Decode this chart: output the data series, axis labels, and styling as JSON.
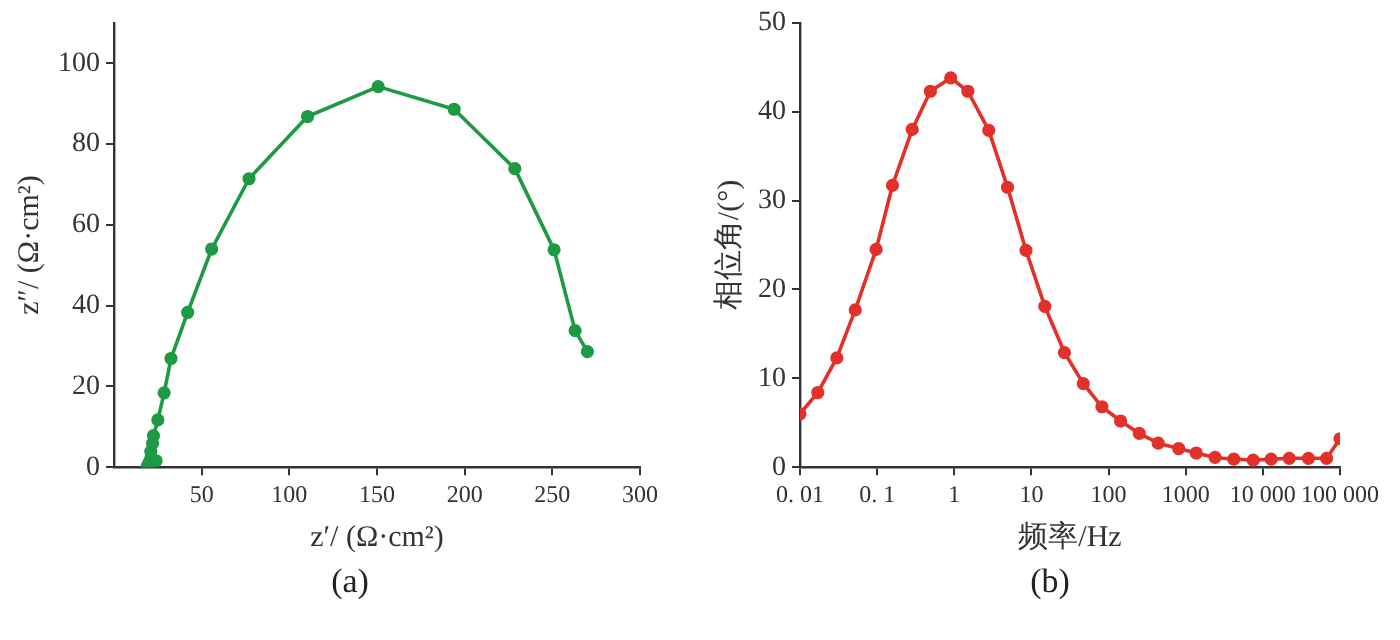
{
  "chart_data": [
    {
      "type": "line",
      "xlabel": "z′/ (Ω·cm²)",
      "ylabel": "z″/ (Ω·cm²)",
      "annotations": [
        "(a)"
      ],
      "marker": "circle",
      "line_style": "solid",
      "xlim": [
        0,
        300
      ],
      "xticks": [
        50,
        100,
        150,
        200,
        250,
        300
      ],
      "ylim": [
        0,
        110
      ],
      "yticks": [
        0,
        20,
        40,
        60,
        80,
        100
      ],
      "series": [
        {
          "color": "#1e9a44",
          "x": [
            19,
            20,
            21,
            24,
            21,
            22,
            22.5,
            25,
            28.6,
            32.5,
            42,
            55.7,
            77,
            110.4,
            150.7,
            194,
            228.6,
            251,
            263,
            270
          ],
          "values": [
            0.3,
            1.2,
            2.3,
            1.6,
            3.9,
            5.9,
            7.8,
            11.7,
            18.4,
            26.9,
            38.3,
            54,
            71.4,
            86.8,
            94.2,
            88.6,
            73.9,
            53.8,
            33.8,
            28.6
          ]
        }
      ]
    },
    {
      "type": "line",
      "xlabel": "频率/Hz",
      "ylabel": "相位角/(°)",
      "annotations": [
        "(b)"
      ],
      "marker": "circle",
      "line_style": "solid",
      "log": "x",
      "xlim": [
        0.01,
        100000
      ],
      "xticks": [
        {
          "value": 0.01,
          "label": "0. 01"
        },
        {
          "value": 0.1,
          "label": "0. 1"
        },
        1,
        10,
        100,
        1000,
        {
          "value": 10000,
          "label": "10 000"
        },
        {
          "value": 100000,
          "label": "100 000"
        }
      ],
      "ylim": [
        0,
        50
      ],
      "yticks": [
        0,
        10,
        20,
        30,
        40,
        50
      ],
      "series": [
        {
          "color": "#e2312a",
          "x": [
            0.01,
            0.017,
            0.03,
            0.052,
            0.097,
            0.158,
            0.285,
            0.49,
            0.9,
            1.5,
            2.8,
            4.9,
            8.5,
            14.9,
            26.8,
            47,
            82,
            143,
            250,
            440,
            810,
            1370,
            2400,
            4200,
            7500,
            12800,
            22000,
            39000,
            67000,
            100000
          ],
          "values": [
            6.0,
            8.4,
            12.3,
            17.7,
            24.5,
            31.7,
            38.0,
            42.3,
            43.8,
            42.3,
            37.9,
            31.5,
            24.4,
            18.1,
            12.9,
            9.4,
            6.8,
            5.2,
            3.8,
            2.7,
            2.1,
            1.6,
            1.1,
            0.9,
            0.8,
            0.9,
            1.0,
            1.0,
            1.0,
            3.2
          ]
        }
      ]
    }
  ]
}
